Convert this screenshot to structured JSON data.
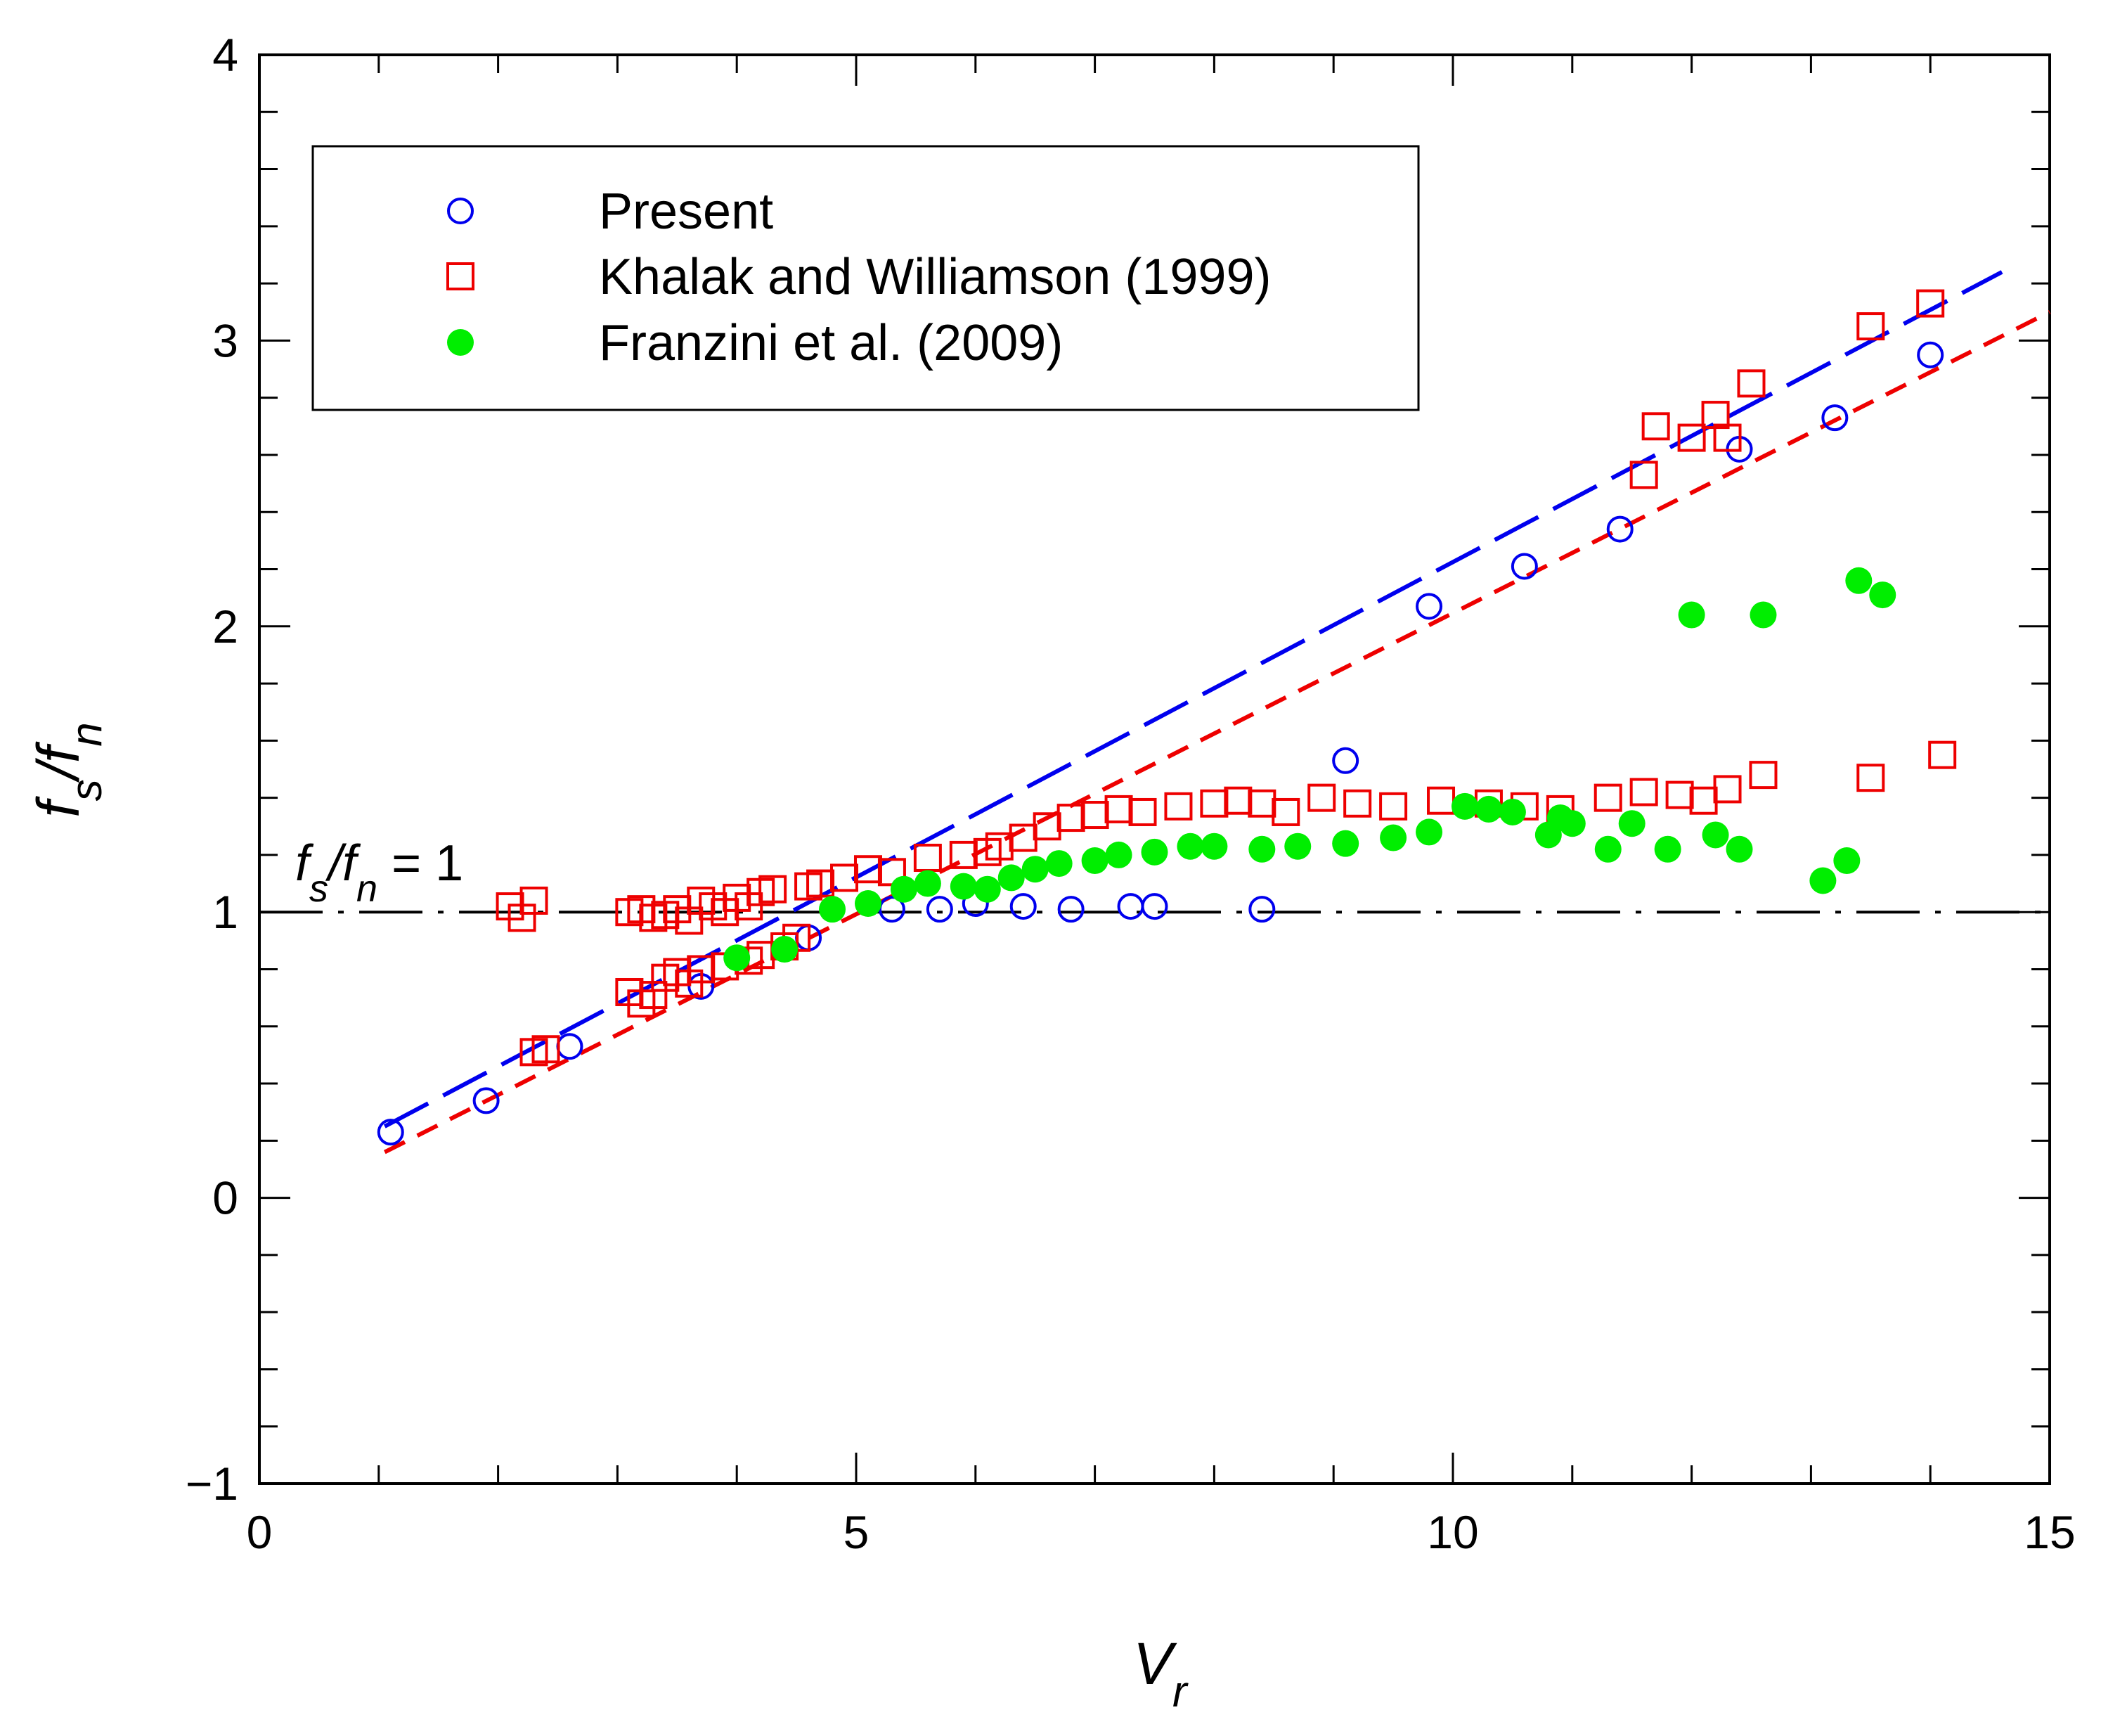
{
  "chart_data": {
    "type": "scatter",
    "title": "",
    "xlabel": {
      "main": "V",
      "sub": "r"
    },
    "ylabel": {
      "f1": "f",
      "sub1": "s",
      "slash": "/",
      "f2": "f",
      "sub2": "n"
    },
    "xlim": [
      0,
      15
    ],
    "ylim": [
      -1,
      4
    ],
    "x_ticks": [
      0,
      5,
      10,
      15
    ],
    "y_ticks": [
      -1,
      0,
      1,
      2,
      3,
      4
    ],
    "x_tick_labels": [
      "0",
      "5",
      "10",
      "15"
    ],
    "y_tick_labels": [
      "−1",
      "0",
      "1",
      "2",
      "3",
      "4"
    ],
    "x_minor_step": 1,
    "y_minor_step": 0.2,
    "reference_line": {
      "y": 1,
      "style": "dash-dot",
      "color": "#000000",
      "label": {
        "f1": "f",
        "sub1": "s",
        "slash": "/",
        "f2": "f",
        "sub2": "n",
        "rest": " = 1"
      }
    },
    "fit_lines": [
      {
        "name": "Present fit",
        "color": "#0000ee",
        "style": "long-dash",
        "x": [
          1.05,
          14.6
        ],
        "y": [
          0.25,
          3.24
        ]
      },
      {
        "name": "Khalak and Williamson fit",
        "color": "#ee0000",
        "style": "short-dash",
        "x": [
          1.05,
          15.0
        ],
        "y": [
          0.16,
          3.1
        ]
      }
    ],
    "legend": {
      "position": "top-left",
      "entries": [
        "Present",
        "Khalak and Williamson (1999)",
        "Franzini et al. (2009)"
      ]
    },
    "series": [
      {
        "name": "Present",
        "marker": "open-circle",
        "color": "#0000ee",
        "points": [
          [
            1.1,
            0.23
          ],
          [
            1.9,
            0.34
          ],
          [
            2.6,
            0.53
          ],
          [
            3.7,
            0.74
          ],
          [
            4.6,
            0.91
          ],
          [
            5.3,
            1.01
          ],
          [
            5.7,
            1.01
          ],
          [
            6.0,
            1.03
          ],
          [
            6.4,
            1.02
          ],
          [
            6.8,
            1.01
          ],
          [
            7.3,
            1.02
          ],
          [
            7.5,
            1.02
          ],
          [
            8.4,
            1.01
          ],
          [
            9.1,
            1.53
          ],
          [
            9.8,
            2.07
          ],
          [
            10.6,
            2.21
          ],
          [
            11.4,
            2.34
          ],
          [
            12.4,
            2.62
          ],
          [
            13.2,
            2.73
          ],
          [
            14.0,
            2.95
          ]
        ]
      },
      {
        "name": "Khalak and Williamson (1999)",
        "marker": "open-square",
        "color": "#ee0000",
        "points": [
          [
            2.1,
            1.02
          ],
          [
            2.2,
            0.98
          ],
          [
            2.3,
            1.04
          ],
          [
            2.3,
            0.51
          ],
          [
            2.4,
            0.52
          ],
          [
            3.1,
            0.72
          ],
          [
            3.2,
            0.68
          ],
          [
            3.3,
            0.71
          ],
          [
            3.4,
            0.77
          ],
          [
            3.5,
            0.79
          ],
          [
            3.6,
            0.75
          ],
          [
            3.7,
            0.8
          ],
          [
            3.1,
            1.0
          ],
          [
            3.2,
            1.01
          ],
          [
            3.3,
            0.98
          ],
          [
            3.4,
            0.99
          ],
          [
            3.5,
            1.01
          ],
          [
            3.6,
            0.97
          ],
          [
            3.7,
            1.04
          ],
          [
            3.8,
            1.02
          ],
          [
            3.9,
            1.0
          ],
          [
            4.0,
            1.05
          ],
          [
            4.1,
            1.02
          ],
          [
            4.2,
            1.07
          ],
          [
            4.3,
            1.08
          ],
          [
            3.9,
            0.81
          ],
          [
            4.1,
            0.83
          ],
          [
            4.2,
            0.85
          ],
          [
            4.4,
            0.88
          ],
          [
            4.5,
            0.91
          ],
          [
            4.6,
            1.09
          ],
          [
            4.7,
            1.1
          ],
          [
            4.9,
            1.12
          ],
          [
            5.1,
            1.15
          ],
          [
            5.3,
            1.14
          ],
          [
            5.6,
            1.19
          ],
          [
            5.9,
            1.2
          ],
          [
            6.1,
            1.21
          ],
          [
            6.2,
            1.23
          ],
          [
            6.4,
            1.26
          ],
          [
            6.6,
            1.3
          ],
          [
            6.8,
            1.33
          ],
          [
            7.0,
            1.34
          ],
          [
            7.2,
            1.36
          ],
          [
            7.4,
            1.35
          ],
          [
            7.7,
            1.37
          ],
          [
            8.0,
            1.38
          ],
          [
            8.2,
            1.39
          ],
          [
            8.4,
            1.38
          ],
          [
            8.6,
            1.35
          ],
          [
            8.9,
            1.4
          ],
          [
            9.2,
            1.38
          ],
          [
            9.5,
            1.37
          ],
          [
            9.9,
            1.39
          ],
          [
            10.3,
            1.38
          ],
          [
            10.6,
            1.37
          ],
          [
            10.9,
            1.36
          ],
          [
            11.3,
            1.4
          ],
          [
            11.6,
            1.42
          ],
          [
            11.9,
            1.41
          ],
          [
            12.1,
            1.39
          ],
          [
            12.3,
            1.43
          ],
          [
            12.6,
            1.48
          ],
          [
            13.5,
            1.47
          ],
          [
            14.1,
            1.55
          ],
          [
            11.6,
            2.53
          ],
          [
            11.7,
            2.7
          ],
          [
            12.0,
            2.66
          ],
          [
            12.2,
            2.74
          ],
          [
            12.3,
            2.66
          ],
          [
            12.5,
            2.85
          ],
          [
            13.5,
            3.05
          ],
          [
            14.0,
            3.13
          ]
        ]
      },
      {
        "name": "Franzini et al. (2009)",
        "marker": "filled-circle",
        "color": "#00ee00",
        "points": [
          [
            4.0,
            0.84
          ],
          [
            4.4,
            0.87
          ],
          [
            4.8,
            1.01
          ],
          [
            5.1,
            1.03
          ],
          [
            5.4,
            1.08
          ],
          [
            5.6,
            1.1
          ],
          [
            5.9,
            1.09
          ],
          [
            6.1,
            1.08
          ],
          [
            6.3,
            1.12
          ],
          [
            6.5,
            1.15
          ],
          [
            6.7,
            1.17
          ],
          [
            7.0,
            1.18
          ],
          [
            7.2,
            1.2
          ],
          [
            7.5,
            1.21
          ],
          [
            7.8,
            1.23
          ],
          [
            8.0,
            1.23
          ],
          [
            8.4,
            1.22
          ],
          [
            8.7,
            1.23
          ],
          [
            9.1,
            1.24
          ],
          [
            9.5,
            1.26
          ],
          [
            9.8,
            1.28
          ],
          [
            10.1,
            1.37
          ],
          [
            10.3,
            1.36
          ],
          [
            10.5,
            1.35
          ],
          [
            10.8,
            1.27
          ],
          [
            10.9,
            1.33
          ],
          [
            11.0,
            1.31
          ],
          [
            11.3,
            1.22
          ],
          [
            11.5,
            1.31
          ],
          [
            11.8,
            1.22
          ],
          [
            12.2,
            1.27
          ],
          [
            12.4,
            1.22
          ],
          [
            13.1,
            1.11
          ],
          [
            13.3,
            1.18
          ],
          [
            12.0,
            2.04
          ],
          [
            12.6,
            2.04
          ],
          [
            13.4,
            2.16
          ],
          [
            13.6,
            2.11
          ]
        ]
      }
    ]
  }
}
